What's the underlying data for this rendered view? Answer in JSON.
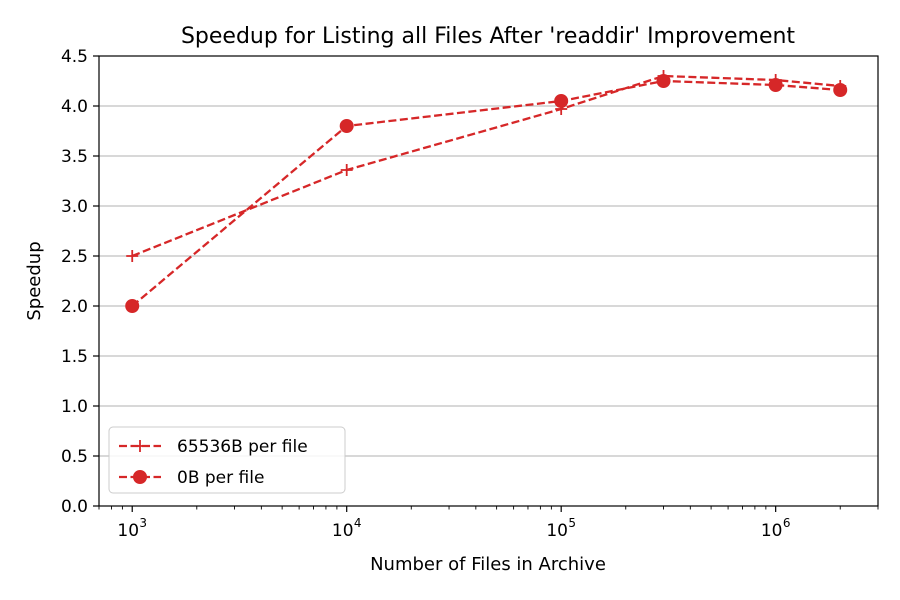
{
  "chart_data": {
    "type": "line",
    "title": "Speedup for Listing all Files After 'readdir' Improvement",
    "xlabel": "Number of Files in Archive",
    "ylabel": "Speedup",
    "xscale": "log",
    "xlim": [
      700,
      3000000
    ],
    "ylim": [
      0,
      4.5
    ],
    "grid": "y-major",
    "legend_position": "lower-left",
    "x_ticks": [
      {
        "value": 1000,
        "base": "10",
        "exp": "3"
      },
      {
        "value": 10000,
        "base": "10",
        "exp": "4"
      },
      {
        "value": 100000,
        "base": "10",
        "exp": "5"
      },
      {
        "value": 1000000,
        "base": "10",
        "exp": "6"
      }
    ],
    "y_ticks": [
      {
        "value": 0.0,
        "label": "0.0"
      },
      {
        "value": 0.5,
        "label": "0.5"
      },
      {
        "value": 1.0,
        "label": "1.0"
      },
      {
        "value": 1.5,
        "label": "1.5"
      },
      {
        "value": 2.0,
        "label": "2.0"
      },
      {
        "value": 2.5,
        "label": "2.5"
      },
      {
        "value": 3.0,
        "label": "3.0"
      },
      {
        "value": 3.5,
        "label": "3.5"
      },
      {
        "value": 4.0,
        "label": "4.0"
      },
      {
        "value": 4.5,
        "label": "4.5"
      }
    ],
    "series": [
      {
        "name": "65536B per file",
        "marker": "plus",
        "color": "#d62728",
        "points": [
          {
            "x": 1000,
            "y": 2.5
          },
          {
            "x": 10000,
            "y": 3.36
          },
          {
            "x": 100000,
            "y": 3.97
          },
          {
            "x": 300000,
            "y": 4.3
          },
          {
            "x": 1000000,
            "y": 4.26
          },
          {
            "x": 2000000,
            "y": 4.2
          }
        ]
      },
      {
        "name": "0B per file",
        "marker": "circle",
        "color": "#d62728",
        "points": [
          {
            "x": 1000,
            "y": 2.0
          },
          {
            "x": 10000,
            "y": 3.8
          },
          {
            "x": 100000,
            "y": 4.05
          },
          {
            "x": 300000,
            "y": 4.25
          },
          {
            "x": 1000000,
            "y": 4.21
          },
          {
            "x": 2000000,
            "y": 4.16
          }
        ]
      }
    ]
  }
}
